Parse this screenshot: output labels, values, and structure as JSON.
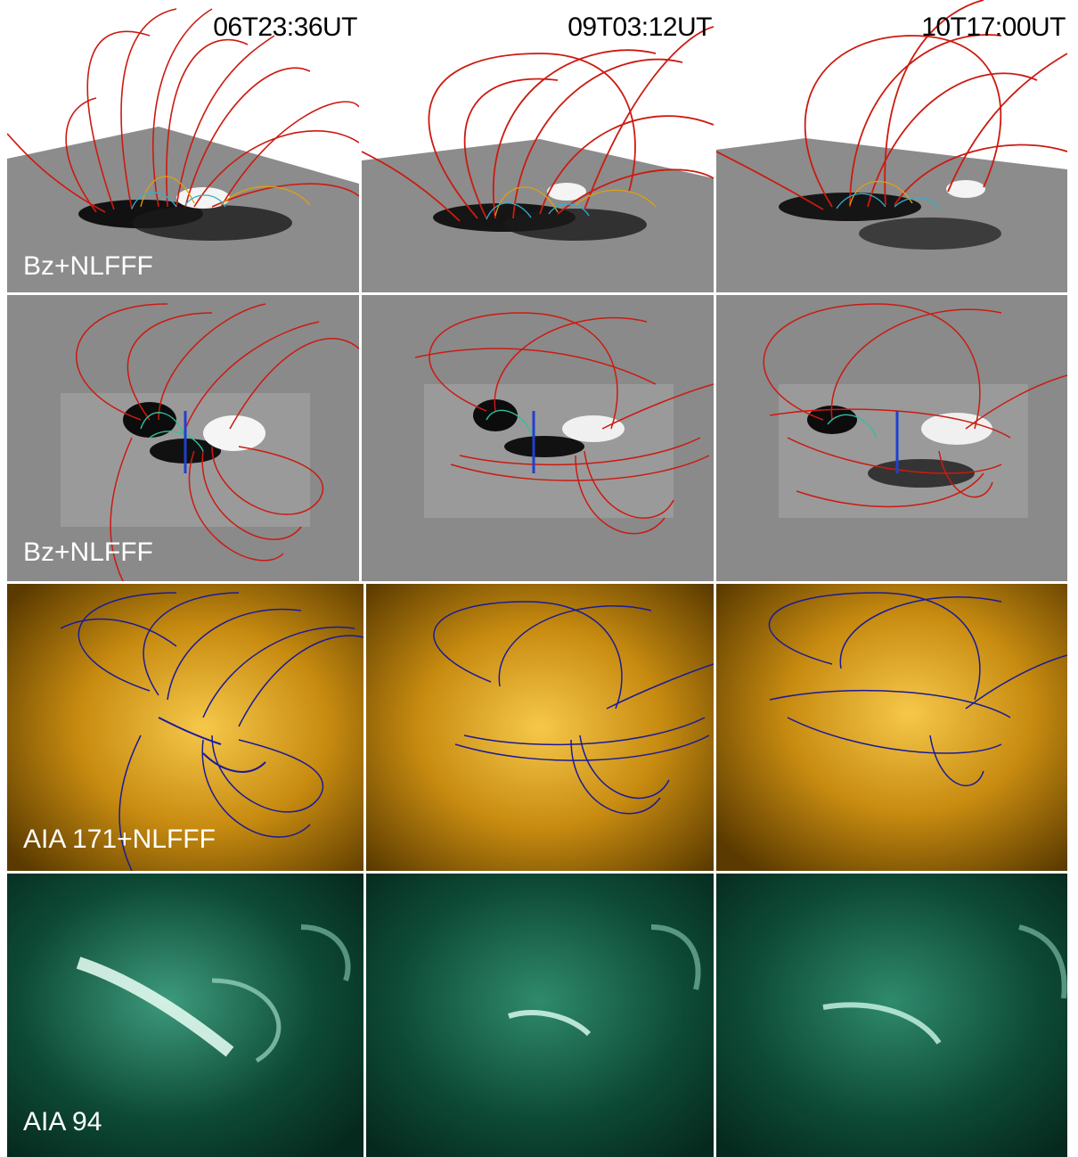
{
  "timestamps": [
    "06T23:36UT",
    "09T03:12UT",
    "10T17:00UT"
  ],
  "rows": [
    {
      "label": "Bz+NLFFF",
      "kind": "bz-3d",
      "line_color": "#d01010"
    },
    {
      "label": "Bz+NLFFF",
      "kind": "bz-top",
      "line_color": "#d01010"
    },
    {
      "label": "AIA 171+NLFFF",
      "kind": "aia171",
      "line_color": "#1a1a9a",
      "background": "#c78b10"
    },
    {
      "label": "AIA 94",
      "kind": "aia94",
      "background": "#0d4a36"
    }
  ]
}
